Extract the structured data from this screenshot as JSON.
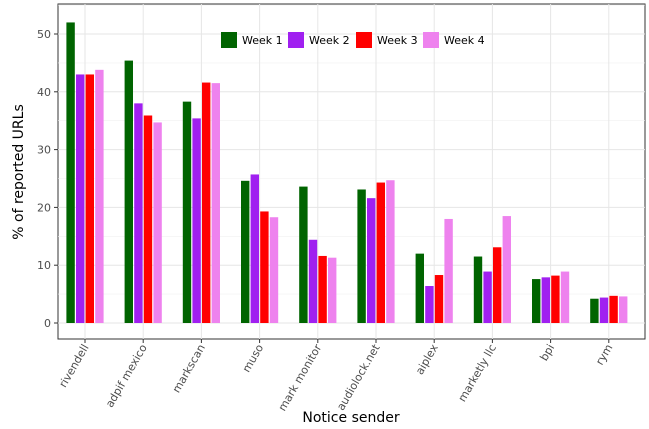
{
  "chart_data": {
    "type": "bar",
    "title": "",
    "xlabel": "Notice sender",
    "ylabel": "% of reported URLs",
    "ylim": [
      0,
      55
    ],
    "yticks": [
      0,
      10,
      20,
      30,
      40,
      50
    ],
    "grid": true,
    "legend_position": "top-center",
    "categories": [
      "rivendell",
      "adpif mexico",
      "markscan",
      "muso",
      "mark monitor",
      "audiolock.net",
      "aiplex",
      "marketly llc",
      "bpi",
      "rym"
    ],
    "series": [
      {
        "name": "Week 1",
        "color": "#006400",
        "values": [
          52.0,
          45.4,
          38.3,
          24.6,
          23.6,
          23.1,
          12.0,
          11.5,
          7.6,
          4.2
        ]
      },
      {
        "name": "Week 2",
        "color": "#a020f0",
        "values": [
          43.0,
          38.0,
          35.4,
          25.7,
          14.4,
          21.6,
          6.4,
          8.9,
          7.9,
          4.4
        ]
      },
      {
        "name": "Week 3",
        "color": "#ff0000",
        "values": [
          43.0,
          35.9,
          41.6,
          19.3,
          11.6,
          24.3,
          8.3,
          13.1,
          8.2,
          4.7
        ]
      },
      {
        "name": "Week 4",
        "color": "#ee82ee",
        "values": [
          43.8,
          34.7,
          41.5,
          18.3,
          11.3,
          24.7,
          18.0,
          18.5,
          8.9,
          4.6
        ]
      }
    ]
  }
}
